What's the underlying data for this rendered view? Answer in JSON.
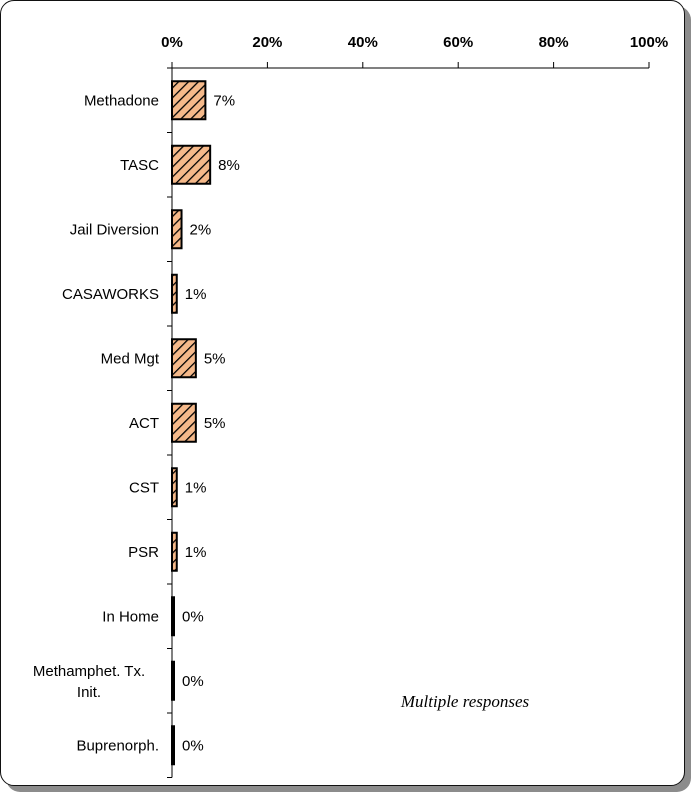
{
  "chart_data": {
    "type": "bar",
    "orientation": "horizontal",
    "categories": [
      "Methadone",
      "TASC",
      "Jail Diversion",
      "CASAWORKS",
      "Med Mgt",
      "ACT",
      "CST",
      "PSR",
      "In Home",
      "Methamphet. Tx. Init.",
      "Buprenorph."
    ],
    "values": [
      7,
      8,
      2,
      1,
      5,
      5,
      1,
      1,
      0,
      0,
      0
    ],
    "value_labels": [
      "7%",
      "8%",
      "2%",
      "1%",
      "5%",
      "5%",
      "1%",
      "1%",
      "0%",
      "0%",
      "0%"
    ],
    "xlim": [
      0,
      100
    ],
    "xticks": [
      0,
      20,
      40,
      60,
      80,
      100
    ],
    "xtick_labels": [
      "0%",
      "20%",
      "40%",
      "60%",
      "80%",
      "100%"
    ],
    "axis_position": "top",
    "grid": false,
    "bar_fill": "#f5b98a",
    "bar_hatch": "#000000",
    "annotation": "Multiple responses"
  }
}
